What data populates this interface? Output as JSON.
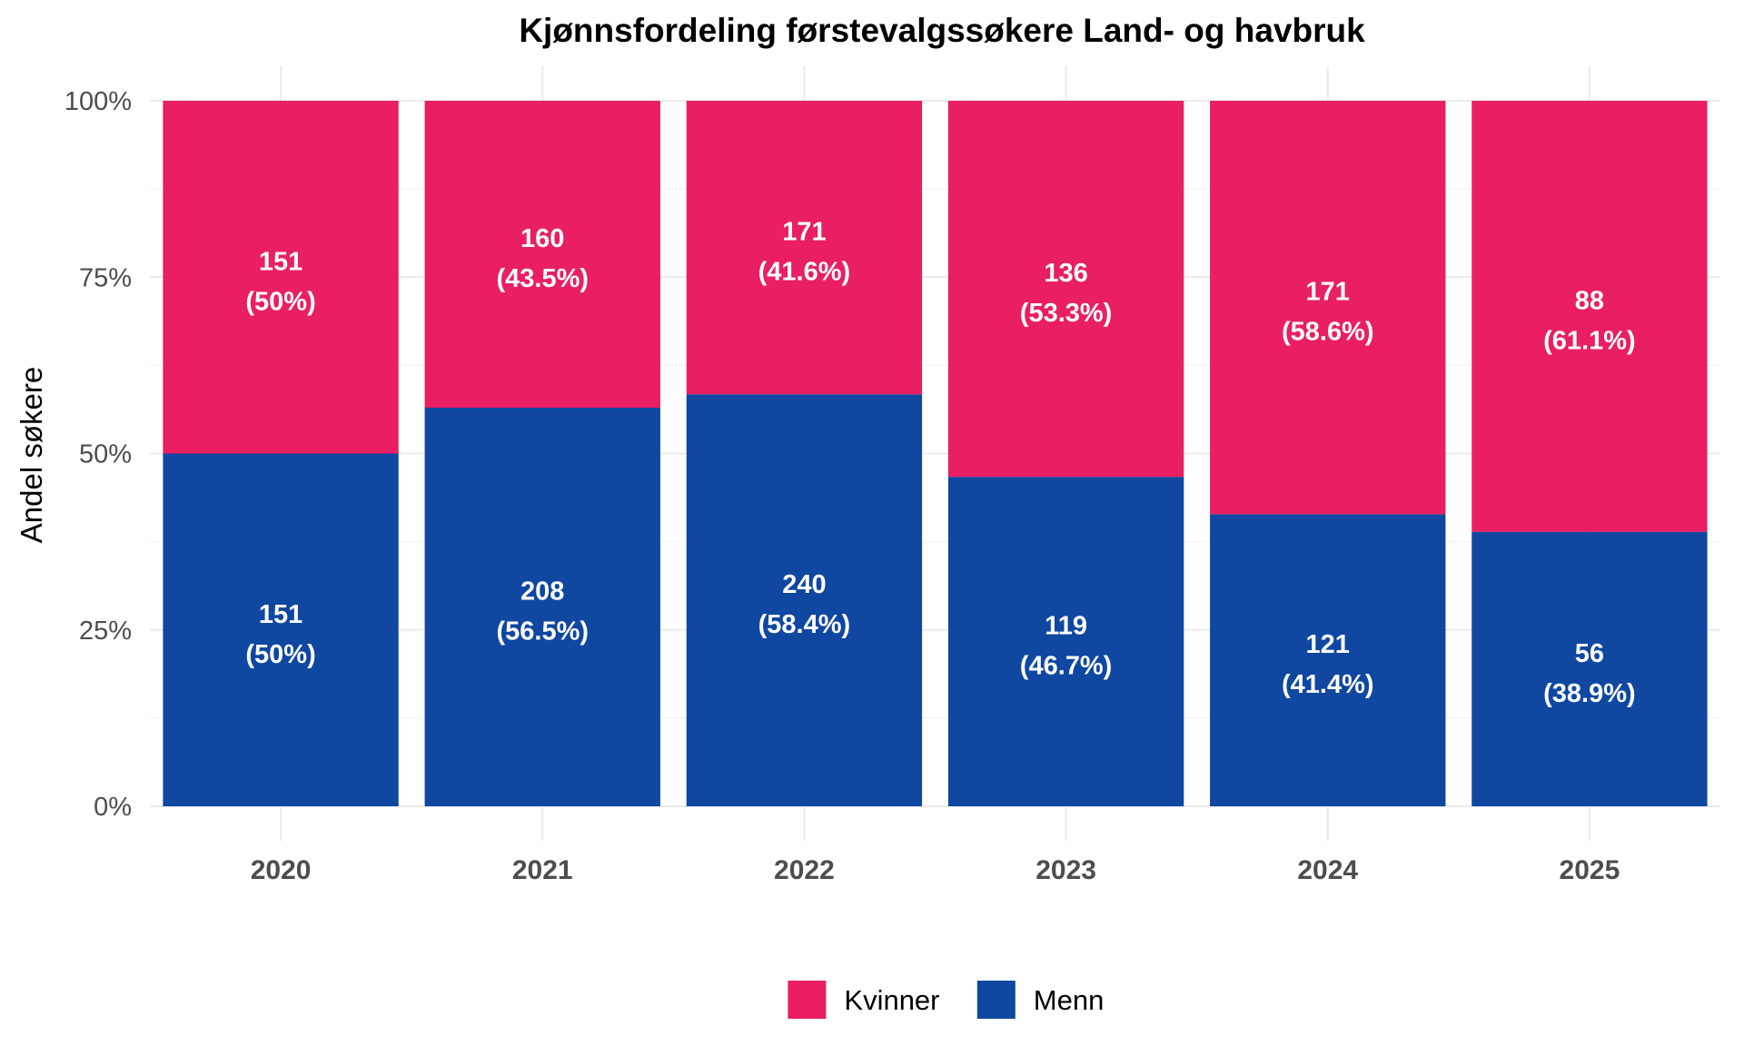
{
  "chart_data": {
    "type": "bar",
    "stacked": true,
    "normalized": true,
    "title": "Kjønnsfordeling førstevalgssøkere Land- og havbruk",
    "xlabel": "",
    "ylabel": "Andel søkere",
    "ylim": [
      0,
      1
    ],
    "yticks": [
      "0%",
      "25%",
      "50%",
      "75%",
      "100%"
    ],
    "categories": [
      "2020",
      "2021",
      "2022",
      "2023",
      "2024",
      "2025"
    ],
    "series": [
      {
        "name": "Menn",
        "color": "#0f47a1",
        "counts": [
          151,
          208,
          240,
          119,
          121,
          56
        ],
        "shares": [
          0.5,
          0.565,
          0.584,
          0.467,
          0.414,
          0.389
        ],
        "labels": [
          "(50%)",
          "(56.5%)",
          "(58.4%)",
          "(46.7%)",
          "(41.4%)",
          "(38.9%)"
        ]
      },
      {
        "name": "Kvinner",
        "color": "#e91e63",
        "counts": [
          151,
          160,
          171,
          136,
          171,
          88
        ],
        "shares": [
          0.5,
          0.435,
          0.416,
          0.533,
          0.586,
          0.611
        ],
        "labels": [
          "(50%)",
          "(43.5%)",
          "(41.6%)",
          "(53.3%)",
          "(58.6%)",
          "(61.1%)"
        ]
      }
    ],
    "legend": {
      "position": "bottom",
      "order": [
        "Kvinner",
        "Menn"
      ]
    },
    "grid": true
  }
}
